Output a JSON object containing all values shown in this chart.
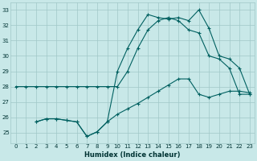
{
  "xlabel": "Humidex (Indice chaleur)",
  "xlim": [
    -0.5,
    23.5
  ],
  "ylim": [
    24.3,
    33.5
  ],
  "yticks": [
    25,
    26,
    27,
    28,
    29,
    30,
    31,
    32,
    33
  ],
  "xticks": [
    0,
    1,
    2,
    3,
    4,
    5,
    6,
    7,
    8,
    9,
    10,
    11,
    12,
    13,
    14,
    15,
    16,
    17,
    18,
    19,
    20,
    21,
    22,
    23
  ],
  "bg_color": "#c8e8e8",
  "grid_color": "#a0c8c8",
  "line_color": "#006060",
  "line1_x": [
    0,
    1,
    2,
    3,
    4,
    5,
    6,
    7,
    8,
    9,
    10,
    11,
    12,
    13,
    14,
    15,
    16,
    17,
    18,
    19,
    20,
    21,
    22,
    23
  ],
  "line1_y": [
    28.0,
    28.0,
    28.0,
    28.0,
    28.0,
    28.0,
    28.0,
    28.0,
    28.0,
    28.0,
    28.0,
    29.0,
    30.5,
    31.7,
    32.3,
    32.5,
    32.3,
    31.7,
    31.5,
    30.0,
    29.8,
    29.2,
    27.5,
    27.5
  ],
  "line2_x": [
    2,
    3,
    4,
    5,
    6,
    7,
    8,
    9,
    10,
    11,
    12,
    13,
    14,
    15,
    16,
    17,
    18,
    19,
    20,
    21,
    22,
    23
  ],
  "line2_y": [
    25.7,
    25.9,
    25.9,
    25.8,
    25.7,
    24.75,
    25.05,
    25.7,
    26.2,
    26.55,
    26.9,
    27.3,
    27.7,
    28.1,
    28.5,
    28.5,
    27.5,
    27.3,
    27.5,
    27.7,
    27.7,
    27.6
  ],
  "line3_x": [
    2,
    3,
    4,
    5,
    6,
    7,
    8,
    9,
    10,
    11,
    12,
    13,
    14,
    15,
    16,
    17,
    18,
    19,
    20,
    21,
    22,
    23
  ],
  "line3_y": [
    25.7,
    25.9,
    25.9,
    25.8,
    25.7,
    24.75,
    25.05,
    25.7,
    29.0,
    30.5,
    31.7,
    32.7,
    32.5,
    32.4,
    32.5,
    32.3,
    33.0,
    31.8,
    30.0,
    29.8,
    29.2,
    27.5
  ]
}
